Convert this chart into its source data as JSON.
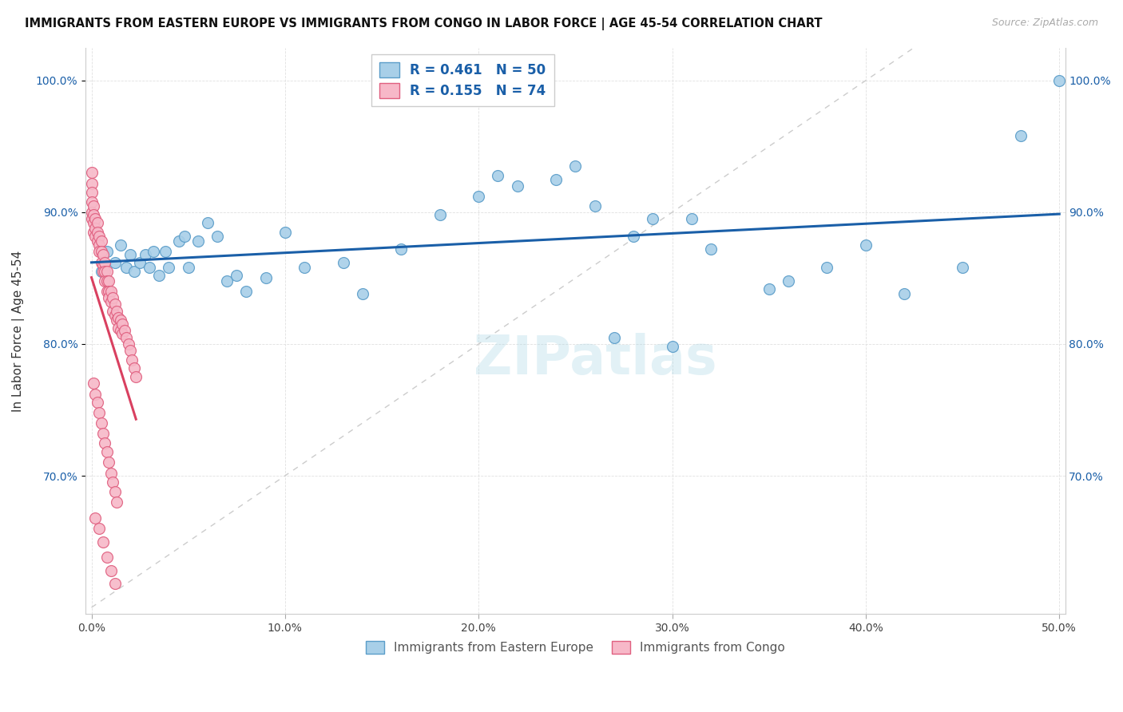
{
  "title": "IMMIGRANTS FROM EASTERN EUROPE VS IMMIGRANTS FROM CONGO IN LABOR FORCE | AGE 45-54 CORRELATION CHART",
  "source": "Source: ZipAtlas.com",
  "legend_blue_label": "Immigrants from Eastern Europe",
  "legend_pink_label": "Immigrants from Congo",
  "ylabel": "In Labor Force | Age 45-54",
  "xlim": [
    -0.003,
    0.503
  ],
  "ylim": [
    0.595,
    1.025
  ],
  "yticks": [
    0.7,
    0.8,
    0.9,
    1.0
  ],
  "ytick_labels": [
    "70.0%",
    "80.0%",
    "90.0%",
    "100.0%"
  ],
  "xticks": [
    0.0,
    0.1,
    0.2,
    0.3,
    0.4,
    0.5
  ],
  "xtick_labels": [
    "0.0%",
    "10.0%",
    "20.0%",
    "30.0%",
    "40.0%",
    "50.0%"
  ],
  "R_blue": 0.461,
  "N_blue": 50,
  "R_pink": 0.155,
  "N_pink": 74,
  "blue_fill": "#a8cfe8",
  "blue_edge": "#5b9dc9",
  "pink_fill": "#f7b8c8",
  "pink_edge": "#e06080",
  "blue_line_color": "#1a5fa8",
  "pink_line_color": "#d94060",
  "diag_color": "#cccccc",
  "watermark": "ZIPatlas",
  "blue_x": [
    0.005,
    0.008,
    0.012,
    0.015,
    0.018,
    0.02,
    0.022,
    0.025,
    0.028,
    0.03,
    0.032,
    0.035,
    0.038,
    0.04,
    0.045,
    0.048,
    0.05,
    0.055,
    0.06,
    0.065,
    0.07,
    0.075,
    0.08,
    0.09,
    0.1,
    0.11,
    0.13,
    0.14,
    0.16,
    0.18,
    0.2,
    0.21,
    0.22,
    0.24,
    0.25,
    0.26,
    0.28,
    0.29,
    0.3,
    0.32,
    0.35,
    0.38,
    0.4,
    0.42,
    0.45,
    0.48,
    0.5,
    0.27,
    0.31,
    0.36
  ],
  "blue_y": [
    0.855,
    0.87,
    0.862,
    0.875,
    0.858,
    0.868,
    0.855,
    0.862,
    0.868,
    0.858,
    0.87,
    0.852,
    0.87,
    0.858,
    0.878,
    0.882,
    0.858,
    0.878,
    0.892,
    0.882,
    0.848,
    0.852,
    0.84,
    0.85,
    0.885,
    0.858,
    0.862,
    0.838,
    0.872,
    0.898,
    0.912,
    0.928,
    0.92,
    0.925,
    0.935,
    0.905,
    0.882,
    0.895,
    0.798,
    0.872,
    0.842,
    0.858,
    0.875,
    0.838,
    0.858,
    0.958,
    1.0,
    0.805,
    0.895,
    0.848
  ],
  "pink_x": [
    0.0,
    0.0,
    0.0,
    0.0,
    0.0,
    0.0,
    0.001,
    0.001,
    0.001,
    0.001,
    0.002,
    0.002,
    0.002,
    0.003,
    0.003,
    0.003,
    0.004,
    0.004,
    0.004,
    0.005,
    0.005,
    0.005,
    0.006,
    0.006,
    0.006,
    0.007,
    0.007,
    0.007,
    0.008,
    0.008,
    0.008,
    0.009,
    0.009,
    0.009,
    0.01,
    0.01,
    0.011,
    0.011,
    0.012,
    0.012,
    0.013,
    0.013,
    0.014,
    0.014,
    0.015,
    0.015,
    0.016,
    0.016,
    0.017,
    0.018,
    0.019,
    0.02,
    0.021,
    0.022,
    0.023,
    0.001,
    0.002,
    0.003,
    0.004,
    0.005,
    0.006,
    0.007,
    0.008,
    0.009,
    0.01,
    0.011,
    0.012,
    0.013,
    0.002,
    0.004,
    0.006,
    0.008,
    0.01,
    0.012
  ],
  "pink_y": [
    0.93,
    0.922,
    0.915,
    0.908,
    0.9,
    0.895,
    0.905,
    0.898,
    0.892,
    0.885,
    0.895,
    0.888,
    0.882,
    0.892,
    0.885,
    0.878,
    0.882,
    0.875,
    0.87,
    0.878,
    0.87,
    0.862,
    0.868,
    0.86,
    0.855,
    0.862,
    0.855,
    0.848,
    0.855,
    0.848,
    0.84,
    0.848,
    0.84,
    0.835,
    0.84,
    0.832,
    0.835,
    0.825,
    0.83,
    0.822,
    0.825,
    0.818,
    0.82,
    0.812,
    0.818,
    0.81,
    0.815,
    0.808,
    0.81,
    0.805,
    0.8,
    0.795,
    0.788,
    0.782,
    0.775,
    0.77,
    0.762,
    0.756,
    0.748,
    0.74,
    0.732,
    0.725,
    0.718,
    0.71,
    0.702,
    0.695,
    0.688,
    0.68,
    0.668,
    0.66,
    0.65,
    0.638,
    0.628,
    0.618
  ]
}
